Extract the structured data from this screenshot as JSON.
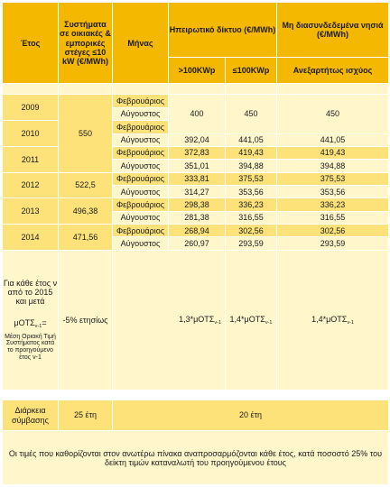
{
  "header": {
    "year": "Έτος",
    "small_systems": "Συστήματα σε οικιακές & εμπορικές στέγες ≤10 kW (€/MWh)",
    "month": "Μήνας",
    "mainland": "Ηπειρωτικό δίκτυο (€/MWh)",
    "islands": "Μη διασυνδεδεμένα νησιά (€/MWh)",
    "gt100": ">100KWp",
    "le100": "≤100KWp",
    "any_power": "Ανεξαρτήτως ισχύος"
  },
  "months": {
    "feb": "Φεβρουάριος",
    "aug": "Αύγουστος"
  },
  "years": [
    "2009",
    "2010",
    "2011",
    "2012",
    "2013",
    "2014"
  ],
  "small": {
    "y2009_2011": "550",
    "y2012": "522,5",
    "y2013": "496,38",
    "y2014": "471,56"
  },
  "rows": [
    {
      "gt": "400",
      "le": "450",
      "isl": "450"
    },
    {
      "gt": "392,04",
      "le": "441,05",
      "isl": "441,05"
    },
    {
      "gt": "372,83",
      "le": "419,43",
      "isl": "419,43"
    },
    {
      "gt": "351,01",
      "le": "394,88",
      "isl": "394,88"
    },
    {
      "gt": "333,81",
      "le": "375,53",
      "isl": "375,53"
    },
    {
      "gt": "314,27",
      "le": "353,56",
      "isl": "353,56"
    },
    {
      "gt": "298,38",
      "le": "336,23",
      "isl": "336,23"
    },
    {
      "gt": "281,38",
      "le": "316,55",
      "isl": "316,55"
    },
    {
      "gt": "268,94",
      "le": "302,56",
      "isl": "302,56"
    },
    {
      "gt": "260,97",
      "le": "293,59",
      "isl": "293,59"
    }
  ],
  "future": {
    "label": "Για κάθε έτος ν από το 2015 και μετά",
    "motes_main": "μΟΤΣ",
    "motes_sub": "ν-1",
    "motes_eq": "=",
    "motes_desc": "Μέση Οριακή Τιμή Συστήματος κατά το προηγούμενο έτος ν-1",
    "small_value": "-5% ετησίως",
    "gt_prefix": "1,3*μΟΤΣ",
    "le_prefix": "1,4*μΟΤΣ",
    "isl_prefix": "1,4*μΟΤΣ",
    "sub": "ν-1"
  },
  "duration": {
    "label": "Διάρκεια σύμβασης",
    "small": "25 έτη",
    "others": "20 έτη"
  },
  "footer": "Οι τιμές που καθορίζονται στον ανωτέρω πίνακα αναπροσαρμόζονται κάθε έτος, κατά ποσοστό 25% του δείκτη τιμών καταναλωτή του προηγούμενου έτους"
}
